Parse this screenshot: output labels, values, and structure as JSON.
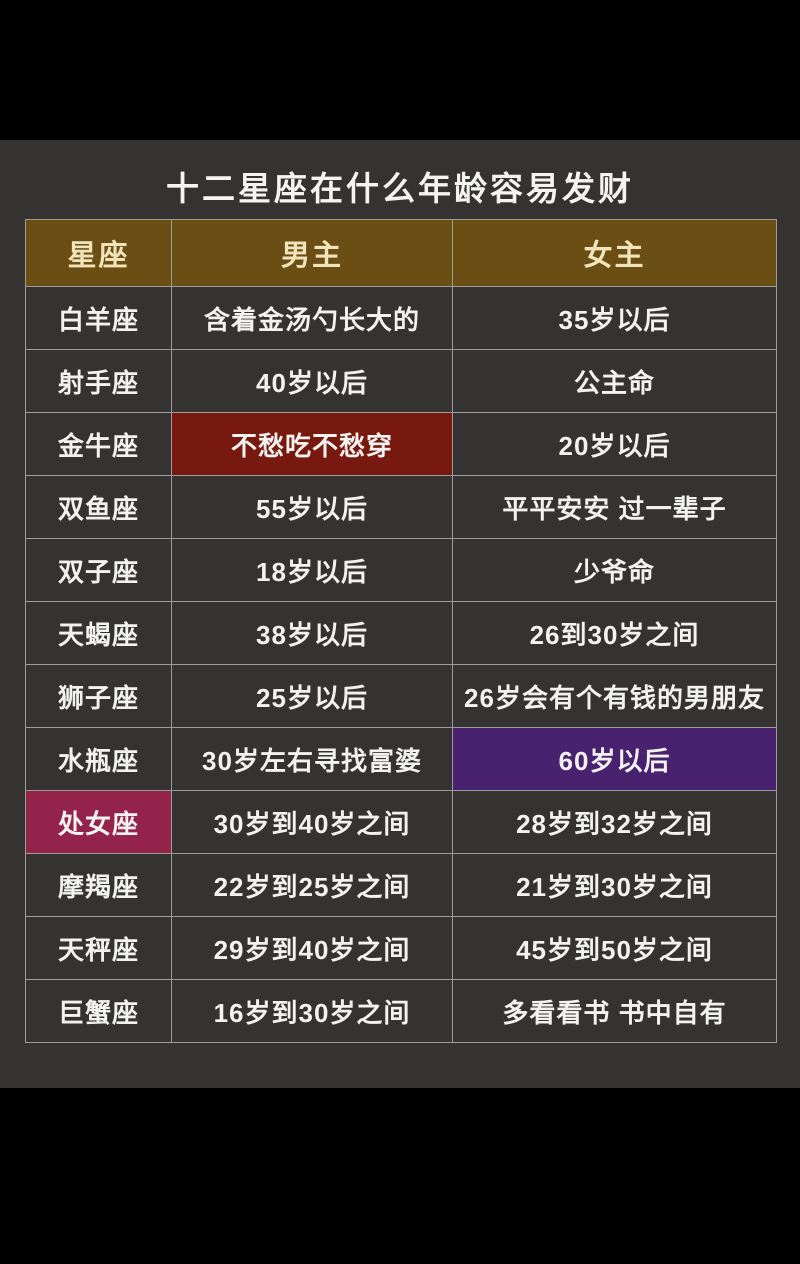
{
  "page": {
    "title": "十二星座在什么年龄容易发财"
  },
  "table": {
    "headers": [
      "星座",
      "男主",
      "女主"
    ],
    "rows": [
      {
        "sign": "白羊座",
        "male": "含着金汤勺长大的",
        "female": "35岁以后"
      },
      {
        "sign": "射手座",
        "male": "40岁以后",
        "female": "公主命"
      },
      {
        "sign": "金牛座",
        "male": "不愁吃不愁穿",
        "female": "20岁以后",
        "male_highlight": "red"
      },
      {
        "sign": "双鱼座",
        "male": "55岁以后",
        "female": "平平安安 过一辈子"
      },
      {
        "sign": "双子座",
        "male": "18岁以后",
        "female": "少爷命"
      },
      {
        "sign": "天蝎座",
        "male": "38岁以后",
        "female": "26到30岁之间"
      },
      {
        "sign": "狮子座",
        "male": "25岁以后",
        "female": "26岁会有个有钱的男朋友"
      },
      {
        "sign": "水瓶座",
        "male": "30岁左右寻找富婆",
        "female": "60岁以后",
        "female_highlight": "purple"
      },
      {
        "sign": "处女座",
        "male": "30岁到40岁之间",
        "female": "28岁到32岁之间",
        "sign_highlight": "pink"
      },
      {
        "sign": "摩羯座",
        "male": "22岁到25岁之间",
        "female": "21岁到30岁之间"
      },
      {
        "sign": "天秤座",
        "male": "29岁到40岁之间",
        "female": "45岁到50岁之间"
      },
      {
        "sign": "巨蟹座",
        "male": "16岁到30岁之间",
        "female": "多看看书 书中自有"
      }
    ]
  },
  "colors": {
    "canvas": "#000000",
    "panel_background": "#353332",
    "header_background": "#6b4e13",
    "header_text": "#f1e4ba",
    "cell_text": "#f2f2f1",
    "grid_border": "#9e9c98",
    "highlight_red": "#77190f",
    "highlight_purple": "#48216f",
    "highlight_pink": "#93234b"
  }
}
